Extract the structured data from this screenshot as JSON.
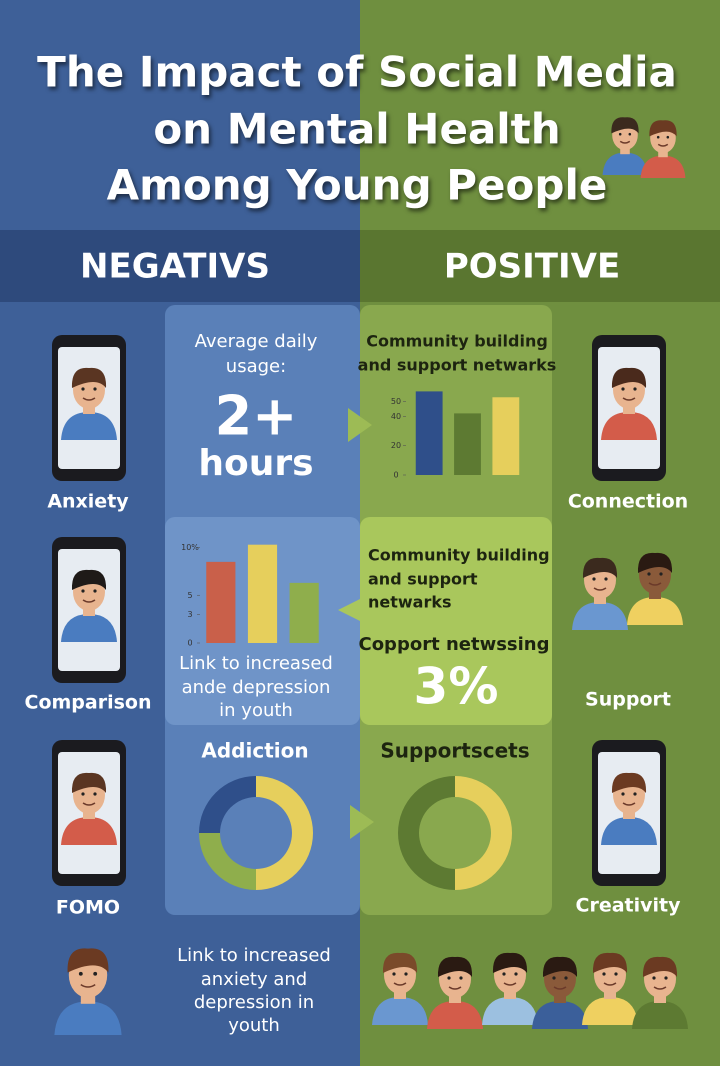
{
  "title": [
    "The Impact of Social Media",
    "on Mental Health",
    "Among Young People"
  ],
  "negative": {
    "heading": "NEGATIVS",
    "items": [
      "Anxiety",
      "Comparison",
      "FOMO"
    ],
    "note": [
      "Link to increased",
      "anxiety and",
      "depression in",
      "youth"
    ]
  },
  "positive": {
    "heading": "POSITIVE",
    "items": [
      "Connection",
      "Support",
      "Creativity"
    ]
  },
  "center": {
    "usage_label": [
      "Average daily",
      "usage:"
    ],
    "usage_value": [
      "2+",
      "hours"
    ],
    "support_text": [
      "Community building",
      "and support",
      "netwarks"
    ],
    "support_label": "Copport netwssing",
    "support_value": "3%"
  },
  "chart_data": [
    {
      "type": "bar",
      "title": [
        "Community building",
        "and support netwarks"
      ],
      "categories": [
        null,
        null,
        null
      ],
      "values": [
        57,
        42,
        53
      ],
      "colors": [
        "#2f4f8a",
        "#5d7a32",
        "#e6cf5c"
      ],
      "ylim": [
        0,
        60
      ],
      "yticks": [
        0,
        20,
        40,
        50
      ]
    },
    {
      "type": "bar",
      "caption": [
        "Link to increased",
        "ande depression",
        "in youth"
      ],
      "categories": [
        null,
        null,
        null
      ],
      "values": [
        8.5,
        10.3,
        6.3
      ],
      "colors": [
        "#c9604a",
        "#e6cf5c",
        "#8fae4c"
      ],
      "ylim": [
        0,
        11
      ],
      "yticks": [
        0,
        3,
        5,
        {
          "value": 10,
          "label": "10%"
        }
      ]
    },
    {
      "type": "pie",
      "donut": true,
      "title": "Addiction",
      "categories": [
        null,
        null,
        null
      ],
      "values": [
        50,
        25,
        25
      ],
      "colors": [
        "#e6cf5c",
        "#8fae4c",
        "#2f4f8a"
      ]
    },
    {
      "type": "pie",
      "donut": true,
      "title": "Supportscets",
      "categories": [
        null,
        null
      ],
      "values": [
        50,
        50
      ],
      "colors": [
        "#e6cf5c",
        "#5d7a32"
      ]
    }
  ]
}
